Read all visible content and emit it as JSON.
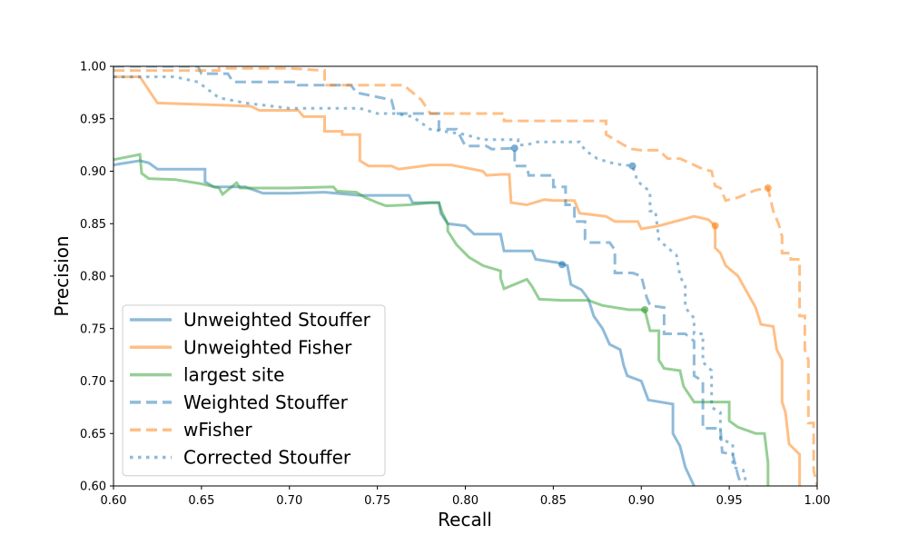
{
  "chart_data": {
    "type": "line",
    "title": "",
    "xlabel": "Recall",
    "ylabel": "Precision",
    "xlim": [
      0.6,
      1.0
    ],
    "ylim": [
      0.6,
      1.0
    ],
    "x_ticks": [
      "0.60",
      "0.65",
      "0.70",
      "0.75",
      "0.80",
      "0.85",
      "0.90",
      "0.95",
      "1.00"
    ],
    "y_ticks": [
      "0.60",
      "0.65",
      "0.70",
      "0.75",
      "0.80",
      "0.85",
      "0.90",
      "0.95",
      "1.00"
    ],
    "grid": false,
    "legend_position": "lower-left",
    "series": [
      {
        "name": "Unweighted Stouffer",
        "color": "#1f77b4",
        "style": "solid",
        "marker": [
          0.855,
          0.811
        ],
        "points": [
          [
            0.6,
            0.906
          ],
          [
            0.615,
            0.91
          ],
          [
            0.62,
            0.908
          ],
          [
            0.625,
            0.902
          ],
          [
            0.652,
            0.902
          ],
          [
            0.652,
            0.89
          ],
          [
            0.657,
            0.885
          ],
          [
            0.675,
            0.885
          ],
          [
            0.685,
            0.879
          ],
          [
            0.7,
            0.879
          ],
          [
            0.72,
            0.88
          ],
          [
            0.74,
            0.877
          ],
          [
            0.768,
            0.877
          ],
          [
            0.77,
            0.87
          ],
          [
            0.785,
            0.87
          ],
          [
            0.786,
            0.86
          ],
          [
            0.79,
            0.85
          ],
          [
            0.8,
            0.848
          ],
          [
            0.805,
            0.84
          ],
          [
            0.82,
            0.84
          ],
          [
            0.822,
            0.824
          ],
          [
            0.838,
            0.824
          ],
          [
            0.84,
            0.816
          ],
          [
            0.852,
            0.813
          ],
          [
            0.858,
            0.81
          ],
          [
            0.86,
            0.792
          ],
          [
            0.866,
            0.787
          ],
          [
            0.87,
            0.778
          ],
          [
            0.873,
            0.762
          ],
          [
            0.878,
            0.75
          ],
          [
            0.882,
            0.735
          ],
          [
            0.888,
            0.73
          ],
          [
            0.89,
            0.715
          ],
          [
            0.892,
            0.705
          ],
          [
            0.9,
            0.7
          ],
          [
            0.904,
            0.682
          ],
          [
            0.918,
            0.678
          ],
          [
            0.918,
            0.65
          ],
          [
            0.922,
            0.638
          ],
          [
            0.925,
            0.618
          ],
          [
            0.93,
            0.6
          ]
        ]
      },
      {
        "name": "Unweighted Fisher",
        "color": "#ff7f0e",
        "style": "solid",
        "marker": [
          0.942,
          0.848
        ],
        "points": [
          [
            0.6,
            0.99
          ],
          [
            0.615,
            0.99
          ],
          [
            0.625,
            0.965
          ],
          [
            0.678,
            0.962
          ],
          [
            0.683,
            0.958
          ],
          [
            0.705,
            0.958
          ],
          [
            0.708,
            0.952
          ],
          [
            0.72,
            0.952
          ],
          [
            0.72,
            0.938
          ],
          [
            0.73,
            0.938
          ],
          [
            0.73,
            0.935
          ],
          [
            0.74,
            0.935
          ],
          [
            0.74,
            0.91
          ],
          [
            0.745,
            0.905
          ],
          [
            0.758,
            0.905
          ],
          [
            0.762,
            0.902
          ],
          [
            0.78,
            0.906
          ],
          [
            0.792,
            0.906
          ],
          [
            0.81,
            0.9
          ],
          [
            0.812,
            0.896
          ],
          [
            0.82,
            0.897
          ],
          [
            0.825,
            0.897
          ],
          [
            0.826,
            0.87
          ],
          [
            0.835,
            0.868
          ],
          [
            0.845,
            0.873
          ],
          [
            0.85,
            0.872
          ],
          [
            0.862,
            0.872
          ],
          [
            0.865,
            0.86
          ],
          [
            0.88,
            0.857
          ],
          [
            0.885,
            0.852
          ],
          [
            0.898,
            0.852
          ],
          [
            0.9,
            0.845
          ],
          [
            0.91,
            0.848
          ],
          [
            0.93,
            0.857
          ],
          [
            0.938,
            0.854
          ],
          [
            0.942,
            0.848
          ],
          [
            0.942,
            0.827
          ],
          [
            0.945,
            0.822
          ],
          [
            0.948,
            0.81
          ],
          [
            0.955,
            0.8
          ],
          [
            0.96,
            0.785
          ],
          [
            0.965,
            0.77
          ],
          [
            0.968,
            0.754
          ],
          [
            0.975,
            0.752
          ],
          [
            0.977,
            0.73
          ],
          [
            0.98,
            0.72
          ],
          [
            0.98,
            0.68
          ],
          [
            0.982,
            0.67
          ],
          [
            0.984,
            0.64
          ],
          [
            0.99,
            0.63
          ],
          [
            0.99,
            0.6
          ]
        ]
      },
      {
        "name": "largest site",
        "color": "#2ca02c",
        "style": "solid",
        "marker": [
          0.902,
          0.768
        ],
        "points": [
          [
            0.6,
            0.911
          ],
          [
            0.615,
            0.916
          ],
          [
            0.616,
            0.898
          ],
          [
            0.62,
            0.893
          ],
          [
            0.635,
            0.892
          ],
          [
            0.65,
            0.888
          ],
          [
            0.66,
            0.884
          ],
          [
            0.662,
            0.878
          ],
          [
            0.67,
            0.889
          ],
          [
            0.672,
            0.884
          ],
          [
            0.7,
            0.884
          ],
          [
            0.725,
            0.885
          ],
          [
            0.727,
            0.881
          ],
          [
            0.738,
            0.88
          ],
          [
            0.743,
            0.875
          ],
          [
            0.75,
            0.87
          ],
          [
            0.755,
            0.867
          ],
          [
            0.768,
            0.868
          ],
          [
            0.78,
            0.87
          ],
          [
            0.785,
            0.87
          ],
          [
            0.787,
            0.86
          ],
          [
            0.79,
            0.85
          ],
          [
            0.79,
            0.843
          ],
          [
            0.795,
            0.83
          ],
          [
            0.802,
            0.818
          ],
          [
            0.81,
            0.81
          ],
          [
            0.82,
            0.805
          ],
          [
            0.82,
            0.798
          ],
          [
            0.822,
            0.788
          ],
          [
            0.835,
            0.797
          ],
          [
            0.838,
            0.79
          ],
          [
            0.842,
            0.778
          ],
          [
            0.855,
            0.777
          ],
          [
            0.87,
            0.777
          ],
          [
            0.873,
            0.775
          ],
          [
            0.878,
            0.772
          ],
          [
            0.893,
            0.768
          ],
          [
            0.902,
            0.768
          ],
          [
            0.905,
            0.748
          ],
          [
            0.91,
            0.748
          ],
          [
            0.91,
            0.72
          ],
          [
            0.913,
            0.712
          ],
          [
            0.922,
            0.71
          ],
          [
            0.924,
            0.695
          ],
          [
            0.93,
            0.68
          ],
          [
            0.95,
            0.68
          ],
          [
            0.95,
            0.662
          ],
          [
            0.955,
            0.656
          ],
          [
            0.965,
            0.65
          ],
          [
            0.97,
            0.65
          ],
          [
            0.972,
            0.622
          ],
          [
            0.972,
            0.6
          ]
        ]
      },
      {
        "name": "Weighted Stouffer",
        "color": "#1f77b4",
        "style": "dashed",
        "marker": [
          0.828,
          0.922
        ],
        "points": [
          [
            0.6,
            1.0
          ],
          [
            0.648,
            1.0
          ],
          [
            0.65,
            0.993
          ],
          [
            0.665,
            0.993
          ],
          [
            0.668,
            0.985
          ],
          [
            0.705,
            0.985
          ],
          [
            0.705,
            0.982
          ],
          [
            0.735,
            0.982
          ],
          [
            0.738,
            0.975
          ],
          [
            0.758,
            0.968
          ],
          [
            0.76,
            0.955
          ],
          [
            0.785,
            0.955
          ],
          [
            0.785,
            0.94
          ],
          [
            0.795,
            0.94
          ],
          [
            0.8,
            0.924
          ],
          [
            0.812,
            0.924
          ],
          [
            0.815,
            0.921
          ],
          [
            0.828,
            0.922
          ],
          [
            0.828,
            0.905
          ],
          [
            0.835,
            0.905
          ],
          [
            0.836,
            0.896
          ],
          [
            0.85,
            0.896
          ],
          [
            0.85,
            0.885
          ],
          [
            0.857,
            0.885
          ],
          [
            0.857,
            0.868
          ],
          [
            0.862,
            0.868
          ],
          [
            0.862,
            0.852
          ],
          [
            0.868,
            0.852
          ],
          [
            0.868,
            0.835
          ],
          [
            0.87,
            0.832
          ],
          [
            0.882,
            0.832
          ],
          [
            0.885,
            0.825
          ],
          [
            0.885,
            0.803
          ],
          [
            0.895,
            0.803
          ],
          [
            0.9,
            0.8
          ],
          [
            0.903,
            0.78
          ],
          [
            0.905,
            0.772
          ],
          [
            0.913,
            0.77
          ],
          [
            0.913,
            0.745
          ],
          [
            0.925,
            0.745
          ],
          [
            0.93,
            0.738
          ],
          [
            0.93,
            0.705
          ],
          [
            0.935,
            0.7
          ],
          [
            0.935,
            0.682
          ],
          [
            0.935,
            0.655
          ],
          [
            0.945,
            0.655
          ],
          [
            0.946,
            0.632
          ],
          [
            0.952,
            0.63
          ],
          [
            0.955,
            0.61
          ],
          [
            0.957,
            0.6
          ]
        ]
      },
      {
        "name": "wFisher",
        "color": "#ff7f0e",
        "style": "dashed",
        "marker": [
          0.972,
          0.884
        ],
        "points": [
          [
            0.6,
            0.996
          ],
          [
            0.66,
            0.996
          ],
          [
            0.66,
            0.998
          ],
          [
            0.7,
            0.998
          ],
          [
            0.72,
            0.996
          ],
          [
            0.72,
            0.982
          ],
          [
            0.75,
            0.982
          ],
          [
            0.765,
            0.982
          ],
          [
            0.775,
            0.968
          ],
          [
            0.78,
            0.955
          ],
          [
            0.822,
            0.955
          ],
          [
            0.822,
            0.948
          ],
          [
            0.88,
            0.948
          ],
          [
            0.88,
            0.935
          ],
          [
            0.89,
            0.925
          ],
          [
            0.895,
            0.921
          ],
          [
            0.9,
            0.92
          ],
          [
            0.91,
            0.92
          ],
          [
            0.915,
            0.912
          ],
          [
            0.922,
            0.912
          ],
          [
            0.93,
            0.906
          ],
          [
            0.935,
            0.902
          ],
          [
            0.94,
            0.9
          ],
          [
            0.942,
            0.886
          ],
          [
            0.945,
            0.884
          ],
          [
            0.948,
            0.872
          ],
          [
            0.955,
            0.875
          ],
          [
            0.965,
            0.882
          ],
          [
            0.972,
            0.884
          ],
          [
            0.975,
            0.862
          ],
          [
            0.978,
            0.85
          ],
          [
            0.98,
            0.838
          ],
          [
            0.98,
            0.822
          ],
          [
            0.985,
            0.822
          ],
          [
            0.985,
            0.816
          ],
          [
            0.99,
            0.816
          ],
          [
            0.99,
            0.762
          ],
          [
            0.993,
            0.762
          ],
          [
            0.993,
            0.73
          ],
          [
            0.995,
            0.72
          ],
          [
            0.995,
            0.66
          ],
          [
            0.998,
            0.66
          ],
          [
            0.998,
            0.615
          ],
          [
            1.0,
            0.6
          ]
        ]
      },
      {
        "name": "Corrected Stouffer",
        "color": "#1f77b4",
        "style": "dotted",
        "marker": [
          0.895,
          0.905
        ],
        "points": [
          [
            0.6,
            0.99
          ],
          [
            0.635,
            0.99
          ],
          [
            0.648,
            0.985
          ],
          [
            0.66,
            0.97
          ],
          [
            0.675,
            0.965
          ],
          [
            0.7,
            0.96
          ],
          [
            0.74,
            0.96
          ],
          [
            0.75,
            0.955
          ],
          [
            0.76,
            0.955
          ],
          [
            0.77,
            0.952
          ],
          [
            0.78,
            0.94
          ],
          [
            0.8,
            0.935
          ],
          [
            0.81,
            0.93
          ],
          [
            0.83,
            0.93
          ],
          [
            0.83,
            0.925
          ],
          [
            0.835,
            0.925
          ],
          [
            0.84,
            0.928
          ],
          [
            0.855,
            0.928
          ],
          [
            0.865,
            0.928
          ],
          [
            0.868,
            0.92
          ],
          [
            0.875,
            0.912
          ],
          [
            0.885,
            0.907
          ],
          [
            0.895,
            0.905
          ],
          [
            0.898,
            0.89
          ],
          [
            0.902,
            0.885
          ],
          [
            0.905,
            0.88
          ],
          [
            0.905,
            0.862
          ],
          [
            0.908,
            0.862
          ],
          [
            0.91,
            0.835
          ],
          [
            0.913,
            0.83
          ],
          [
            0.92,
            0.82
          ],
          [
            0.922,
            0.8
          ],
          [
            0.925,
            0.79
          ],
          [
            0.925,
            0.77
          ],
          [
            0.93,
            0.76
          ],
          [
            0.93,
            0.745
          ],
          [
            0.935,
            0.745
          ],
          [
            0.935,
            0.718
          ],
          [
            0.94,
            0.71
          ],
          [
            0.94,
            0.675
          ],
          [
            0.945,
            0.67
          ],
          [
            0.945,
            0.645
          ],
          [
            0.952,
            0.64
          ],
          [
            0.952,
            0.618
          ],
          [
            0.958,
            0.615
          ],
          [
            0.96,
            0.6
          ]
        ]
      }
    ]
  }
}
